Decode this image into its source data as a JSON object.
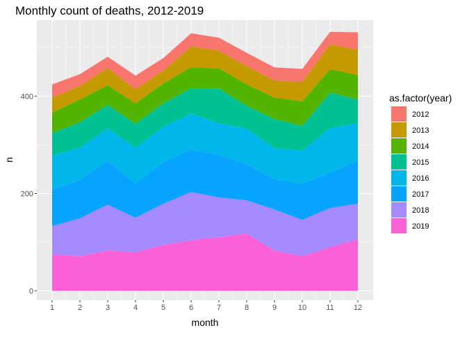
{
  "chart_data": {
    "type": "area",
    "stacked": true,
    "title": "Monthly count of deaths, 2012-2019",
    "xlabel": "month",
    "ylabel": "n",
    "x": [
      1,
      2,
      3,
      4,
      5,
      6,
      7,
      8,
      9,
      10,
      11,
      12
    ],
    "xlim": [
      0.45,
      12.55
    ],
    "ylim": [
      -19,
      556
    ],
    "yticks": [
      0,
      200,
      400
    ],
    "grid": true,
    "legend_title": "as.factor(year)",
    "legend_position": "right",
    "series": [
      {
        "name": "2012",
        "color": "#F8766D",
        "values": [
          27,
          24,
          23,
          28,
          26,
          27,
          27,
          27,
          27,
          27,
          26,
          36
        ]
      },
      {
        "name": "2013",
        "color": "#C49A00",
        "values": [
          31,
          28,
          36,
          29,
          26,
          43,
          36,
          38,
          35,
          40,
          51,
          52
        ]
      },
      {
        "name": "2014",
        "color": "#53B400",
        "values": [
          42,
          47,
          40,
          42,
          41,
          43,
          41,
          44,
          44,
          50,
          48,
          50
        ]
      },
      {
        "name": "2015",
        "color": "#00C094",
        "values": [
          46,
          52,
          48,
          49,
          48,
          52,
          72,
          47,
          60,
          51,
          73,
          48
        ]
      },
      {
        "name": "2016",
        "color": "#00B6EB",
        "values": [
          70,
          66,
          67,
          74,
          73,
          74,
          65,
          73,
          64,
          68,
          92,
          77
        ]
      },
      {
        "name": "2017",
        "color": "#06A4FF",
        "values": [
          75,
          79,
          90,
          70,
          85,
          87,
          87,
          74,
          62,
          74,
          72,
          89
        ]
      },
      {
        "name": "2018",
        "color": "#A58AFF",
        "values": [
          58,
          78,
          94,
          71,
          85,
          99,
          82,
          68,
          84,
          75,
          80,
          73
        ]
      },
      {
        "name": "2019",
        "color": "#FB61D7",
        "values": [
          75,
          71,
          83,
          79,
          94,
          104,
          110,
          118,
          83,
          71,
          90,
          106
        ]
      }
    ]
  }
}
